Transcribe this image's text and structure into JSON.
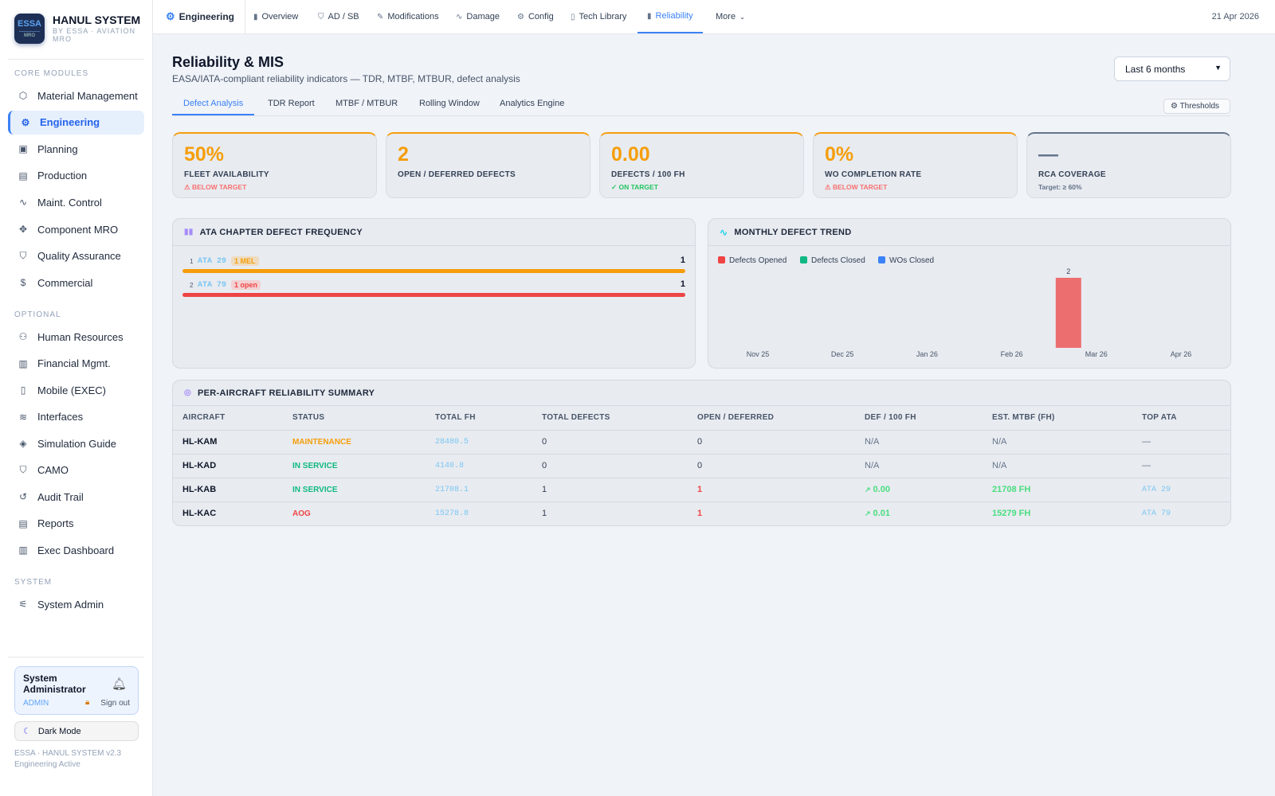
{
  "brand": {
    "logo_top": "ESSA",
    "logo_bottom": "MRO",
    "title": "HANUL SYSTEM",
    "subtitle": "BY ESSA · AVIATION MRO"
  },
  "sidebar": {
    "sections": [
      "CORE MODULES",
      "OPTIONAL",
      "SYSTEM"
    ],
    "core": [
      {
        "label": "Material Management",
        "icon": "⬡"
      },
      {
        "label": "Engineering",
        "icon": "⚙"
      },
      {
        "label": "Planning",
        "icon": "▣"
      },
      {
        "label": "Production",
        "icon": "▤"
      },
      {
        "label": "Maint. Control",
        "icon": "∿"
      },
      {
        "label": "Component MRO",
        "icon": "✥"
      },
      {
        "label": "Quality Assurance",
        "icon": "⛉"
      },
      {
        "label": "Commercial",
        "icon": "$"
      }
    ],
    "optional": [
      {
        "label": "Human Resources",
        "icon": "⚇"
      },
      {
        "label": "Financial Mgmt.",
        "icon": "▥"
      },
      {
        "label": "Mobile (EXEC)",
        "icon": "▯"
      },
      {
        "label": "Interfaces",
        "icon": "≋"
      },
      {
        "label": "Simulation Guide",
        "icon": "◈"
      },
      {
        "label": "CAMO",
        "icon": "⛉"
      },
      {
        "label": "Audit Trail",
        "icon": "↺"
      },
      {
        "label": "Reports",
        "icon": "▤"
      },
      {
        "label": "Exec Dashboard",
        "icon": "▥"
      }
    ],
    "system": [
      {
        "label": "System Admin",
        "icon": "⚟"
      }
    ],
    "user": {
      "name": "System Administrator",
      "role": "ADMIN",
      "sign_out": "Sign out"
    },
    "dark_mode": "Dark Mode",
    "footer1": "ESSA · HANUL SYSTEM v2.3",
    "footer2": "Engineering Active"
  },
  "topnav": {
    "module": "Engineering",
    "items": [
      "Overview",
      "AD / SB",
      "Modifications",
      "Damage",
      "Config",
      "Tech Library",
      "Reliability",
      "More"
    ],
    "date": "21 Apr 2026"
  },
  "page": {
    "title": "Reliability & MIS",
    "subtitle": "EASA/IATA-compliant reliability indicators — TDR, MTBF, MTBUR, defect analysis",
    "period": "Last 6 months",
    "tabs": [
      "Defect Analysis",
      "TDR Report",
      "MTBF / MTBUR",
      "Rolling Window",
      "Analytics Engine"
    ],
    "thresholds": "Thresholds"
  },
  "kpis": [
    {
      "value": "50%",
      "label": "FLEET AVAILABILITY",
      "status": "⚠ BELOW TARGET",
      "color": "#f59e0b",
      "status_color": "#f87171"
    },
    {
      "value": "2",
      "label": "OPEN / DEFERRED DEFECTS",
      "status": "",
      "color": "#f59e0b",
      "status_color": "#f87171"
    },
    {
      "value": "0.00",
      "label": "DEFECTS / 100 FH",
      "status": "✓ ON TARGET",
      "color": "#f59e0b",
      "status_color": "#22c55e"
    },
    {
      "value": "0%",
      "label": "WO COMPLETION RATE",
      "status": "⚠ BELOW TARGET",
      "color": "#f59e0b",
      "status_color": "#f87171"
    },
    {
      "value": "—",
      "label": "RCA COVERAGE",
      "status": "Target: ≥ 60%",
      "color": "#64748b",
      "status_color": "#64748b"
    }
  ],
  "ata_panel": {
    "title": "ATA CHAPTER DEFECT FREQUENCY",
    "rows": [
      {
        "rank": "1",
        "ata": "ATA 29",
        "badge": "1 MEL",
        "count": "1",
        "color": "#f59e0b",
        "fraction": 1
      },
      {
        "rank": "2",
        "ata": "ATA 79",
        "badge": "1 open",
        "count": "1",
        "color": "#ef4444",
        "fraction": 1
      }
    ]
  },
  "chart_data": {
    "type": "bar",
    "title": "MONTHLY DEFECT TREND",
    "categories": [
      "Nov 25",
      "Dec 25",
      "Jan 26",
      "Feb 26",
      "Mar 26",
      "Apr 26"
    ],
    "series": [
      {
        "name": "Defects Opened",
        "color": "#ef4444",
        "values": [
          0,
          0,
          0,
          0,
          2,
          0
        ]
      },
      {
        "name": "Defects Closed",
        "color": "#10b981",
        "values": [
          0,
          0,
          0,
          0,
          0,
          0
        ]
      },
      {
        "name": "WOs Closed",
        "color": "#3b82f6",
        "values": [
          0,
          0,
          0,
          0,
          0,
          0
        ]
      }
    ],
    "ylim": [
      0,
      2
    ],
    "legend": "top-left"
  },
  "table": {
    "title": "PER-AIRCRAFT RELIABILITY SUMMARY",
    "headers": [
      "AIRCRAFT",
      "STATUS",
      "TOTAL FH",
      "TOTAL DEFECTS",
      "OPEN / DEFERRED",
      "DEF / 100 FH",
      "EST. MTBF (FH)",
      "TOP ATA"
    ],
    "rows": [
      {
        "aircraft": "HL-KAM",
        "status": "MAINTENANCE",
        "status_color": "#f59e0b",
        "fh": "28480.5",
        "defects": "0",
        "open": "0",
        "rate": "N/A",
        "mtbf": "N/A",
        "ata": "—"
      },
      {
        "aircraft": "HL-KAD",
        "status": "IN SERVICE",
        "status_color": "#10b981",
        "fh": "4140.8",
        "defects": "0",
        "open": "0",
        "rate": "N/A",
        "mtbf": "N/A",
        "ata": "—"
      },
      {
        "aircraft": "HL-KAB",
        "status": "IN SERVICE",
        "status_color": "#10b981",
        "fh": "21708.1",
        "defects": "1",
        "open": "1",
        "rate": "0.00",
        "mtbf": "21708 FH",
        "ata": "ATA 29"
      },
      {
        "aircraft": "HL-KAC",
        "status": "AOG",
        "status_color": "#ef4444",
        "fh": "15278.8",
        "defects": "1",
        "open": "1",
        "rate": "0.01",
        "mtbf": "15279 FH",
        "ata": "ATA 79"
      }
    ]
  }
}
